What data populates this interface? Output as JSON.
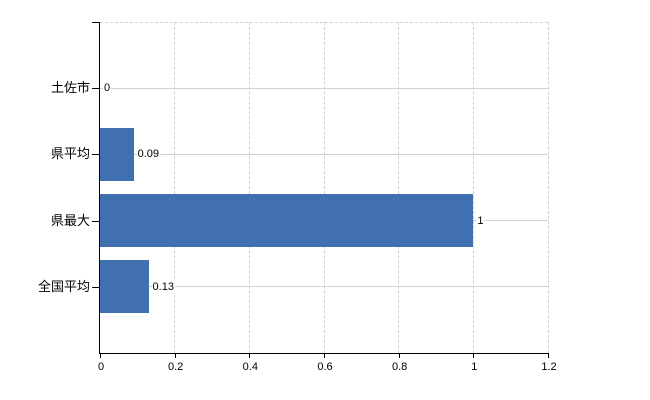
{
  "chart_data": {
    "type": "bar",
    "orientation": "horizontal",
    "title": "",
    "xlabel": "",
    "ylabel": "",
    "categories": [
      "土佐市",
      "県平均",
      "県最大",
      "全国平均"
    ],
    "values": [
      0,
      0.09,
      1,
      0.13
    ],
    "value_labels": [
      "0",
      "0.09",
      "1",
      "0.13"
    ],
    "xlim": [
      0,
      1.2
    ],
    "x_ticks": [
      0,
      0.2,
      0.4,
      0.6,
      0.8,
      1,
      1.2
    ],
    "x_tick_labels": [
      "0",
      "0.2",
      "0.4",
      "0.6",
      "0.8",
      "1",
      "1.2"
    ],
    "grid": true,
    "legend": false,
    "colors": {
      "bar": "#4070b0",
      "axis": "#000000",
      "gridline_vertical": "#d3cfd7",
      "gridline_horizontal": "#ccd4cc",
      "text": "#000000",
      "background": "#ffffff"
    }
  }
}
